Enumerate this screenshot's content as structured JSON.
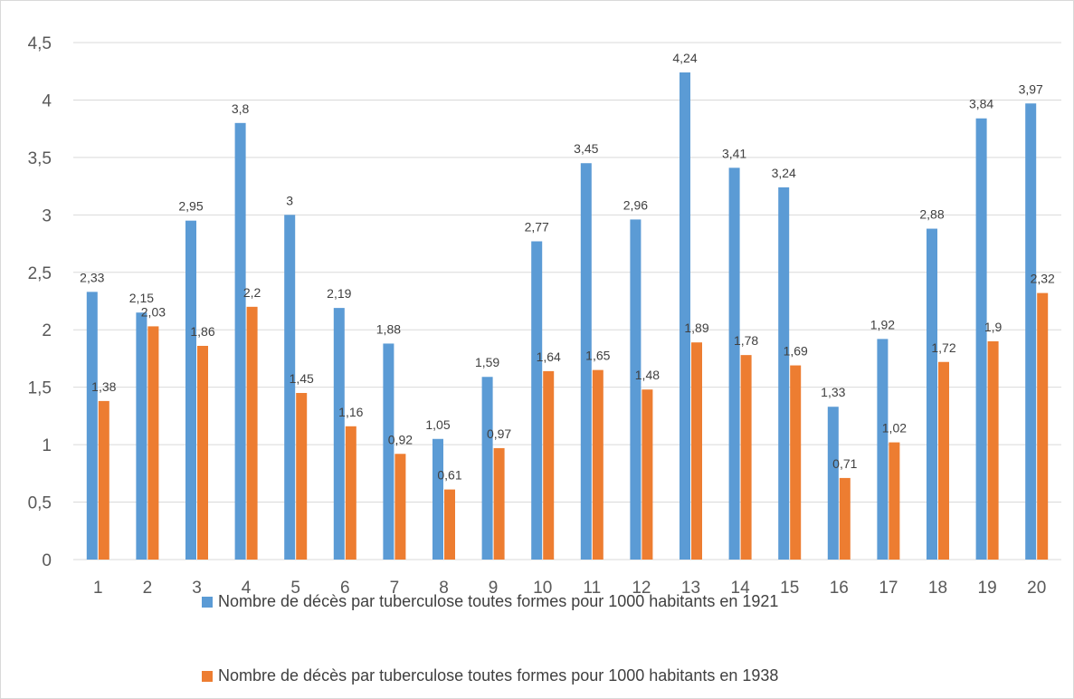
{
  "chart_data": {
    "type": "bar",
    "categories": [
      "1",
      "2",
      "3",
      "4",
      "5",
      "6",
      "7",
      "8",
      "9",
      "10",
      "11",
      "12",
      "13",
      "14",
      "15",
      "16",
      "17",
      "18",
      "19",
      "20"
    ],
    "ylim": [
      0,
      4.5
    ],
    "yticks": [
      "0",
      "0,5",
      "1",
      "1,5",
      "2",
      "2,5",
      "3",
      "3,5",
      "4",
      "4,5"
    ],
    "grid": true,
    "legend_position": "bottom",
    "series": [
      {
        "name": "Nombre de décès par tuberculose toutes formes pour 1000 habitants en 1921",
        "color": "#5b9bd5",
        "values": [
          2.33,
          2.15,
          2.95,
          3.8,
          3,
          2.19,
          1.88,
          1.05,
          1.59,
          2.77,
          3.45,
          2.96,
          4.24,
          3.41,
          3.24,
          1.33,
          1.92,
          2.88,
          3.84,
          3.97
        ],
        "labels": [
          "2,33",
          "2,15",
          "2,95",
          "3,8",
          "3",
          "2,19",
          "1,88",
          "1,05",
          "1,59",
          "2,77",
          "3,45",
          "2,96",
          "4,24",
          "3,41",
          "3,24",
          "1,33",
          "1,92",
          "2,88",
          "3,84",
          "3,97"
        ]
      },
      {
        "name": "Nombre de décès par tuberculose toutes formes pour 1000 habitants en 1938",
        "color": "#ed7d31",
        "values": [
          1.38,
          2.03,
          1.86,
          2.2,
          1.45,
          1.16,
          0.92,
          0.61,
          0.97,
          1.64,
          1.65,
          1.48,
          1.89,
          1.78,
          1.69,
          0.71,
          1.02,
          1.72,
          1.9,
          2.32
        ],
        "labels": [
          "1,38",
          "2,03",
          "1,86",
          "2,2",
          "1,45",
          "1,16",
          "0,92",
          "0,61",
          "0,97",
          "1,64",
          "1,65",
          "1,48",
          "1,89",
          "1,78",
          "1,69",
          "0,71",
          "1,02",
          "1,72",
          "1,9",
          "2,32"
        ]
      }
    ]
  }
}
